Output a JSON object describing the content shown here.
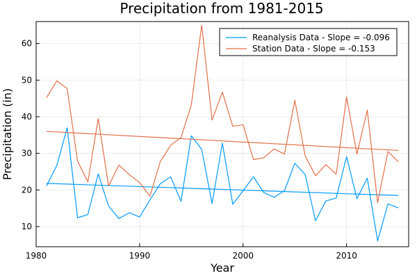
{
  "chart_data": {
    "type": "line",
    "title": "Precipitation from 1981-2015",
    "xlabel": "Year",
    "ylabel": "Precipitation (in)",
    "xlim": [
      1980,
      2016
    ],
    "ylim": [
      4.5,
      66
    ],
    "xticks": [
      1980,
      1990,
      2000,
      2010
    ],
    "yticks": [
      10,
      20,
      30,
      40,
      50,
      60
    ],
    "grid": true,
    "legend_position": "top-right",
    "x": [
      1981,
      1982,
      1983,
      1984,
      1985,
      1986,
      1987,
      1988,
      1989,
      1990,
      1991,
      1992,
      1993,
      1994,
      1995,
      1996,
      1997,
      1998,
      1999,
      2000,
      2001,
      2002,
      2003,
      2004,
      2005,
      2006,
      2007,
      2008,
      2009,
      2010,
      2011,
      2012,
      2013,
      2014,
      2015
    ],
    "series": [
      {
        "name": "Reanalysis Data - Slope = -0.096",
        "color": "#009AFA",
        "values": [
          21.1,
          26.7,
          37.0,
          12.4,
          13.3,
          24.4,
          15.6,
          12.2,
          13.8,
          12.6,
          17.3,
          21.7,
          23.6,
          16.9,
          34.8,
          31.1,
          16.3,
          32.8,
          16.1,
          19.8,
          23.6,
          19.3,
          18.0,
          19.8,
          27.3,
          24.2,
          11.6,
          17.0,
          17.8,
          29.1,
          17.6,
          23.2,
          6.1,
          16.2,
          15.1
        ],
        "trend": {
          "start": [
            1981,
            21.8
          ],
          "end": [
            2015,
            18.5
          ]
        }
      },
      {
        "name": "Station Data - Slope = -0.153",
        "color": "#E26F46",
        "values": [
          45.2,
          49.8,
          47.7,
          27.9,
          22.2,
          39.5,
          21.1,
          26.8,
          24.2,
          22.0,
          18.3,
          27.8,
          32.2,
          34.3,
          43.3,
          65.0,
          39.1,
          46.7,
          37.4,
          37.8,
          28.3,
          28.8,
          31.2,
          29.8,
          44.5,
          29.3,
          23.9,
          26.9,
          24.3,
          45.4,
          29.8,
          41.8,
          16.5,
          30.5,
          27.7
        ],
        "trend": {
          "start": [
            1981,
            36.0
          ],
          "end": [
            2015,
            30.8
          ]
        }
      }
    ]
  }
}
